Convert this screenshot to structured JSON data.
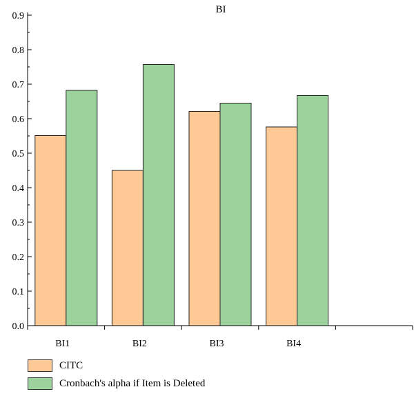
{
  "chart_data": {
    "type": "bar",
    "title": "BI",
    "xlabel": "",
    "ylabel": "",
    "categories": [
      "BI1",
      "BI2",
      "BI3",
      "BI4",
      ""
    ],
    "series": [
      {
        "name": "CITC",
        "values": [
          0.551,
          0.45,
          0.621,
          0.576,
          null
        ],
        "color": "#fec994"
      },
      {
        "name": "Cronbach's alpha if Item is Deleted",
        "values": [
          0.682,
          0.757,
          0.645,
          0.667,
          null
        ],
        "color": "#9cd39d"
      }
    ],
    "ylim": [
      0,
      0.9
    ],
    "yticks": [
      "0.0",
      "0.1",
      "0.2",
      "0.3",
      "0.4",
      "0.5",
      "0.6",
      "0.7",
      "0.8",
      "0.9"
    ],
    "grid": false,
    "legend_position": "bottom-left"
  }
}
